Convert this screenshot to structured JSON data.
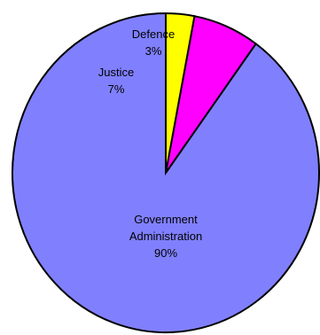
{
  "chart_data": {
    "type": "pie",
    "title": "",
    "slices": [
      {
        "label_lines": [
          "Government",
          "Administration"
        ],
        "percent_label": "90%",
        "value": 90,
        "color": "#8080ff"
      },
      {
        "label_lines": [
          "Justice"
        ],
        "percent_label": "7%",
        "value": 7,
        "color": "#ff00ff"
      },
      {
        "label_lines": [
          "Defence"
        ],
        "percent_label": "3%",
        "value": 3,
        "color": "#ffff00"
      }
    ],
    "start_angle": "12 o'clock",
    "direction": "counter-clockwise",
    "legend": "none"
  }
}
